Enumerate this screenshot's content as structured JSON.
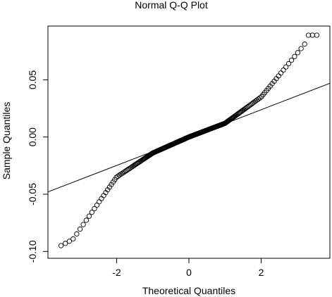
{
  "chart_data": {
    "type": "scatter",
    "title": "Normal Q-Q Plot",
    "xlabel": "Theoretical Quantiles",
    "ylabel": "Sample Quantiles",
    "xlim": [
      -3.9,
      3.9
    ],
    "ylim": [
      -0.106,
      0.097
    ],
    "x_ticks": [
      -2,
      0,
      2
    ],
    "x_tick_labels": [
      "-2",
      "0",
      "2"
    ],
    "y_ticks": [
      -0.1,
      -0.05,
      0.0,
      0.05
    ],
    "y_tick_labels": [
      "-0.10",
      "-0.05",
      "0.00",
      "0.05"
    ],
    "grid": false,
    "marker": "open-circle",
    "n_points": 360,
    "x_range": [
      -3.6,
      3.6
    ],
    "sample_points_notable": [
      {
        "x": -3.6,
        "y": -0.096
      },
      {
        "x": -3.3,
        "y": -0.091
      },
      {
        "x": -3.2,
        "y": -0.089
      },
      {
        "x": -2.0,
        "y": -0.035
      },
      {
        "x": -1.0,
        "y": -0.014
      },
      {
        "x": 0.0,
        "y": 0.0
      },
      {
        "x": 1.0,
        "y": 0.012
      },
      {
        "x": 2.0,
        "y": 0.035
      },
      {
        "x": 3.2,
        "y": 0.081
      },
      {
        "x": 3.3,
        "y": 0.089
      },
      {
        "x": 3.6,
        "y": 0.089
      }
    ],
    "reference_line": {
      "x": [
        -3.9,
        3.9
      ],
      "y": [
        -0.048,
        0.047
      ]
    }
  }
}
